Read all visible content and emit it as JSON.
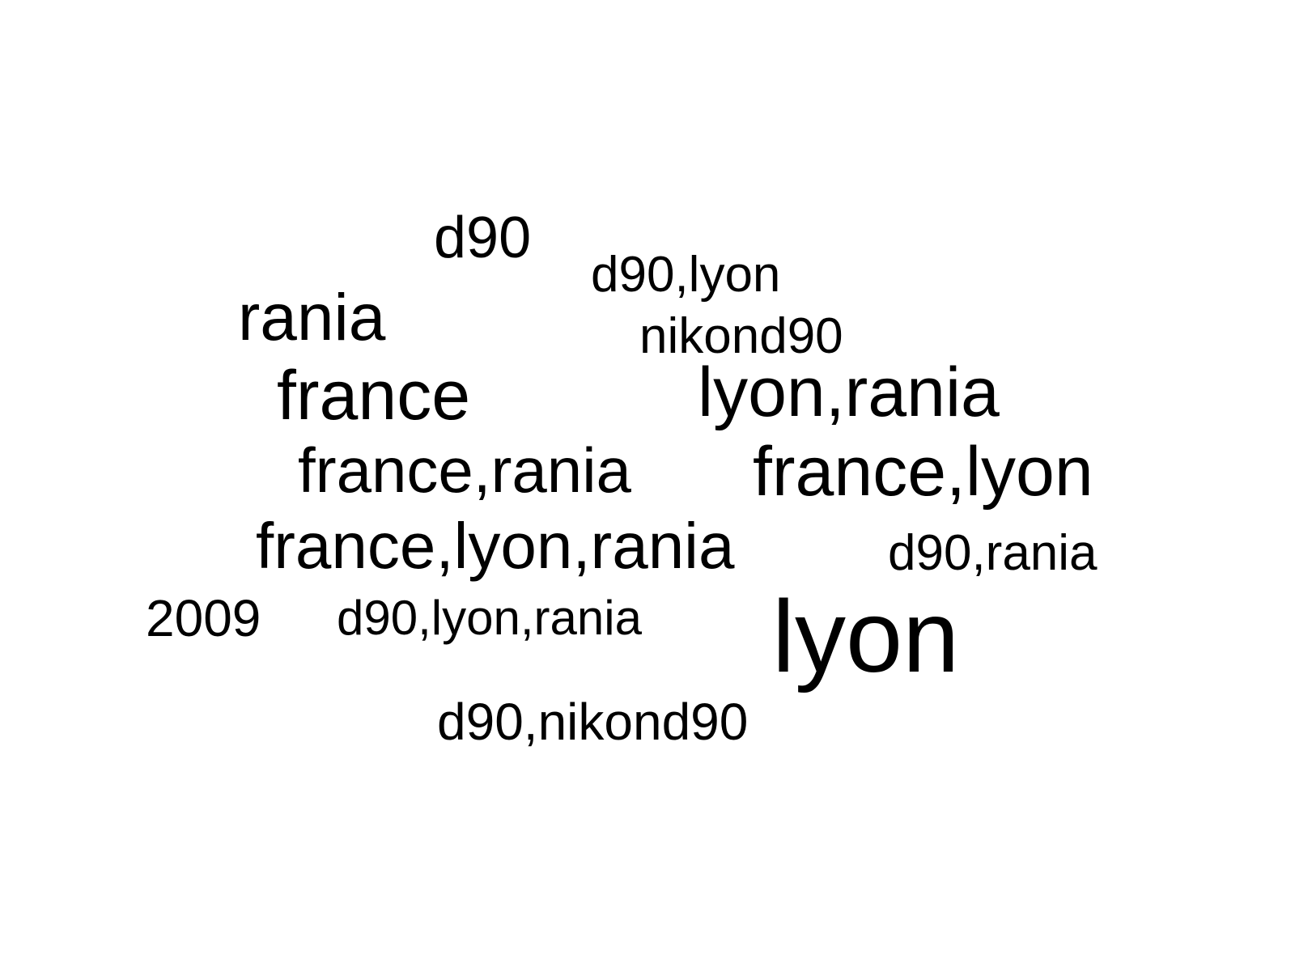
{
  "chart_data": {
    "type": "wordcloud",
    "words": [
      {
        "text": "d90"
      },
      {
        "text": "d90,lyon"
      },
      {
        "text": "rania"
      },
      {
        "text": "nikond90"
      },
      {
        "text": "france"
      },
      {
        "text": "lyon,rania"
      },
      {
        "text": "france,rania"
      },
      {
        "text": "france,lyon"
      },
      {
        "text": "france,lyon,rania"
      },
      {
        "text": "d90,rania"
      },
      {
        "text": "2009"
      },
      {
        "text": "d90,lyon,rania"
      },
      {
        "text": "lyon"
      },
      {
        "text": "d90,nikond90"
      }
    ]
  },
  "colors": {
    "text": "#000000",
    "background": "#ffffff"
  }
}
